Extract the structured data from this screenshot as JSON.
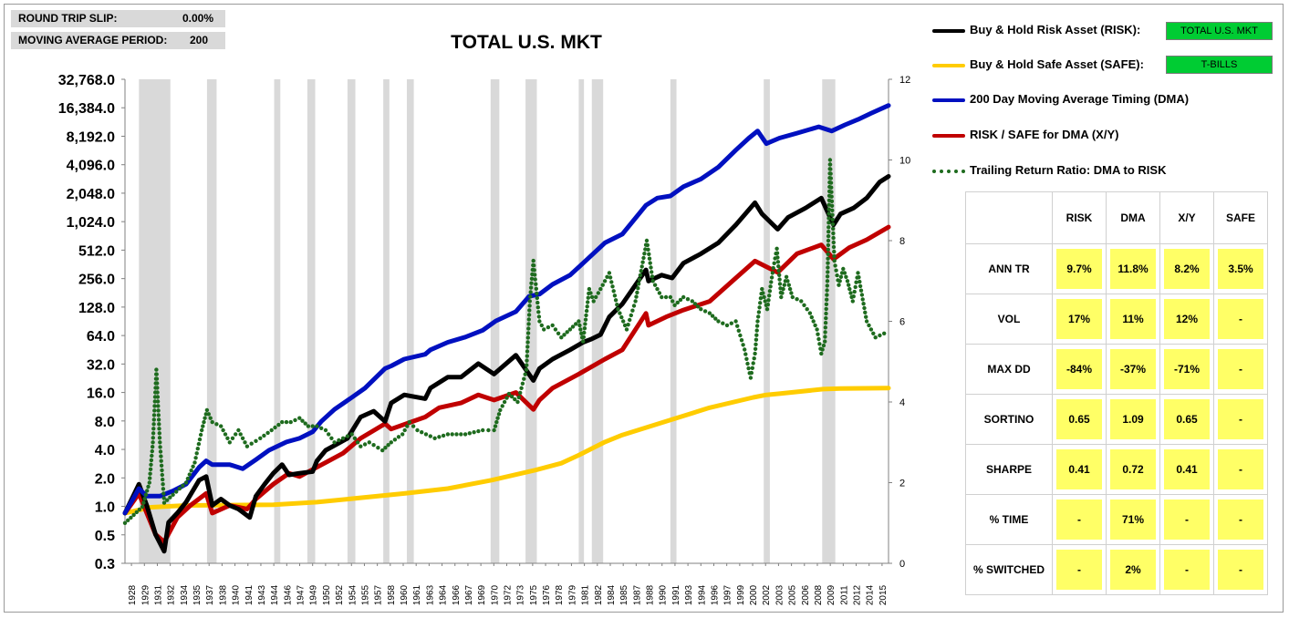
{
  "params": [
    {
      "label": "ROUND TRIP SLIP:",
      "value": "0.00%"
    },
    {
      "label": "MOVING AVERAGE PERIOD:",
      "value": "200"
    }
  ],
  "colors": {
    "risk": "#000000",
    "safe": "#ffcc00",
    "dma": "#0010c0",
    "xy": "#c00000",
    "ratio": "#1e6b1e",
    "recession": "#d9d9d9",
    "tag": "#00cc33",
    "cell": "#ffff66"
  },
  "legend": [
    {
      "label": "Buy & Hold Risk Asset (RISK):",
      "tag": "TOTAL U.S. MKT",
      "style": "line",
      "color_key": "risk"
    },
    {
      "label": "Buy & Hold Safe Asset (SAFE):",
      "tag": "T-BILLS",
      "style": "line",
      "color_key": "safe"
    },
    {
      "label": "200 Day Moving Average Timing (DMA)",
      "style": "line",
      "color_key": "dma"
    },
    {
      "label": "RISK / SAFE for DMA (X/Y)",
      "style": "line",
      "color_key": "xy"
    },
    {
      "label": "Trailing Return Ratio: DMA to RISK",
      "style": "dots",
      "color_key": "ratio"
    }
  ],
  "stats": {
    "columns": [
      "RISK",
      "DMA",
      "X/Y",
      "SAFE"
    ],
    "rows": [
      {
        "label": "ANN TR",
        "values": [
          "9.7%",
          "11.8%",
          "8.2%",
          "3.5%"
        ]
      },
      {
        "label": "VOL",
        "values": [
          "17%",
          "11%",
          "12%",
          "-"
        ]
      },
      {
        "label": "MAX DD",
        "values": [
          "-84%",
          "-37%",
          "-71%",
          "-"
        ]
      },
      {
        "label": "SORTINO",
        "values": [
          "0.65",
          "1.09",
          "0.65",
          "-"
        ]
      },
      {
        "label": "SHARPE",
        "values": [
          "0.41",
          "0.72",
          "0.41",
          "-"
        ]
      },
      {
        "label": "% TIME",
        "values": [
          "-",
          "71%",
          "-",
          "-"
        ]
      },
      {
        "label": "% SWITCHED",
        "values": [
          "-",
          "2%",
          "-",
          "-"
        ]
      }
    ]
  },
  "chart_data": {
    "type": "line",
    "title": "TOTAL U.S. MKT",
    "y_scale": "log2",
    "y_ticks": [
      "32,768.0",
      "16,384.0",
      "8,192.0",
      "4,096.0",
      "2,048.0",
      "1,024.0",
      "512.0",
      "256.0",
      "128.0",
      "64.0",
      "32.0",
      "16.0",
      "8.0",
      "4.0",
      "2.0",
      "1.0",
      "0.5",
      "0.3"
    ],
    "y2_ticks": [
      "12",
      "10",
      "8",
      "6",
      "4",
      "2",
      "0"
    ],
    "y2_range": [
      0,
      12
    ],
    "x_range": [
      1928,
      2015.5
    ],
    "x_ticks": [
      "1928",
      "1929",
      "1931",
      "1932",
      "1934",
      "1935",
      "1937",
      "1938",
      "1940",
      "1941",
      "1943",
      "1944",
      "1946",
      "1947",
      "1949",
      "1950",
      "1952",
      "1954",
      "1955",
      "1957",
      "1958",
      "1960",
      "1961",
      "1963",
      "1964",
      "1966",
      "1967",
      "1969",
      "1970",
      "1972",
      "1973",
      "1975",
      "1976",
      "1978",
      "1979",
      "1981",
      "1982",
      "1984",
      "1985",
      "1987",
      "1988",
      "1990",
      "1991",
      "1993",
      "1994",
      "1996",
      "1997",
      "1999",
      "2000",
      "2002",
      "2003",
      "2005",
      "2006",
      "2008",
      "2009",
      "2011",
      "2012",
      "2014",
      "2015"
    ],
    "recessions": [
      [
        1929.6,
        1933.2
      ],
      [
        1937.4,
        1938.5
      ],
      [
        1945.1,
        1945.8
      ],
      [
        1948.9,
        1949.8
      ],
      [
        1953.5,
        1954.4
      ],
      [
        1957.6,
        1958.3
      ],
      [
        1960.3,
        1961.1
      ],
      [
        1969.9,
        1970.9
      ],
      [
        1973.9,
        1975.2
      ],
      [
        1980.0,
        1980.6
      ],
      [
        1981.5,
        1982.8
      ],
      [
        1990.5,
        1991.2
      ],
      [
        2001.2,
        2001.9
      ],
      [
        2007.9,
        2009.4
      ]
    ],
    "series": [
      {
        "name": "Buy & Hold Risk Asset (RISK)",
        "axis": "left",
        "x": [
          1928,
          1929.6,
          1930.5,
          1931.5,
          1932.5,
          1933,
          1934,
          1935,
          1936.5,
          1937.3,
          1938,
          1939,
          1940,
          1941,
          1942.3,
          1943,
          1944,
          1945,
          1946,
          1946.8,
          1948,
          1949.5,
          1950,
          1951,
          1953.5,
          1955,
          1956.5,
          1957.8,
          1958.5,
          1960,
          1962.4,
          1963,
          1965,
          1966.5,
          1968.5,
          1970.3,
          1972.8,
          1974.8,
          1975.5,
          1977,
          1979,
          1980.5,
          1981.5,
          1982.5,
          1983.5,
          1985,
          1987.7,
          1988,
          1989.5,
          1990.7,
          1992,
          1994,
          1996,
          1998,
          2000.2,
          2001,
          2002.8,
          2004,
          2006,
          2007.8,
          2009.2,
          2010,
          2011.5,
          2013,
          2014.5,
          2015.5
        ],
        "y": [
          1.0,
          2.0,
          1.2,
          0.6,
          0.4,
          0.8,
          1.0,
          1.3,
          2.2,
          2.4,
          1.2,
          1.4,
          1.2,
          1.1,
          0.9,
          1.5,
          2.0,
          2.6,
          3.2,
          2.5,
          2.6,
          2.7,
          3.5,
          4.5,
          6.0,
          10.0,
          11.5,
          9.0,
          14.0,
          17.0,
          15.5,
          20.0,
          26.0,
          26.0,
          36.0,
          28.0,
          44.0,
          24.0,
          32.0,
          40.0,
          50.0,
          60.0,
          65.0,
          72.0,
          110.0,
          150.0,
          340.0,
          260.0,
          300.0,
          280.0,
          400.0,
          500.0,
          650.0,
          1000.0,
          1700.0,
          1300.0,
          900.0,
          1200.0,
          1500.0,
          1900.0,
          1000.0,
          1300.0,
          1500.0,
          1900.0,
          2800.0,
          3200.0
        ]
      },
      {
        "name": "Buy & Hold Safe Asset (SAFE)",
        "axis": "left",
        "x": [
          1928,
          1931,
          1935,
          1945,
          1950,
          1960,
          1965,
          1970,
          1975,
          1978,
          1980,
          1983,
          1985,
          1990,
          1995,
          2000,
          2001.5,
          2003,
          2008,
          2010,
          2015.5
        ],
        "y": [
          1.0,
          1.15,
          1.2,
          1.22,
          1.3,
          1.6,
          1.8,
          2.2,
          2.8,
          3.3,
          4.0,
          5.5,
          6.5,
          9.0,
          12.5,
          16.0,
          17.0,
          17.5,
          19.5,
          19.8,
          20.0
        ]
      },
      {
        "name": "200 Day Moving Average Timing (DMA)",
        "axis": "left",
        "x": [
          1928,
          1929.6,
          1930.5,
          1932,
          1933.5,
          1935,
          1936.5,
          1937.3,
          1938,
          1940,
          1941.5,
          1943,
          1944.5,
          1946.5,
          1948,
          1949.5,
          1950.5,
          1952,
          1954,
          1955.5,
          1957.8,
          1958.5,
          1960,
          1962.4,
          1963,
          1965,
          1967,
          1969,
          1970.5,
          1972.8,
          1974.3,
          1975.5,
          1977,
          1979,
          1980.5,
          1983,
          1985,
          1987.7,
          1989,
          1990.5,
          1992,
          1994,
          1996,
          1998,
          1999.5,
          2000.5,
          2001.5,
          2003,
          2005,
          2007.5,
          2009,
          2010.5,
          2012,
          2013.5,
          2015.5
        ],
        "y": [
          1.0,
          1.8,
          1.5,
          1.5,
          1.7,
          2.0,
          3.0,
          3.5,
          3.2,
          3.2,
          2.9,
          3.6,
          4.5,
          5.5,
          6.0,
          7.0,
          9.0,
          12.0,
          16.0,
          20.0,
          32.0,
          34.0,
          40.0,
          45.0,
          50.0,
          60.0,
          68.0,
          80.0,
          100.0,
          125.0,
          180.0,
          190.0,
          240.0,
          300.0,
          400.0,
          650.0,
          800.0,
          1600.0,
          1900.0,
          2000.0,
          2500.0,
          3000.0,
          4000.0,
          6000.0,
          8000.0,
          9500.0,
          7000.0,
          8000.0,
          9000.0,
          10500.0,
          9500.0,
          11000.0,
          12500.0,
          14500.0,
          17500.0
        ]
      },
      {
        "name": "RISK / SAFE for DMA (X/Y)",
        "axis": "left",
        "x": [
          1928,
          1929.6,
          1930.5,
          1931.5,
          1932.5,
          1934,
          1935.5,
          1937.3,
          1938,
          1940,
          1942,
          1943,
          1945,
          1946.8,
          1948,
          1950,
          1953,
          1955,
          1957.8,
          1958.5,
          1962.4,
          1964,
          1966.5,
          1968.5,
          1970.3,
          1972.8,
          1974.8,
          1975.5,
          1977,
          1980,
          1983,
          1985,
          1987.7,
          1988,
          1990,
          1992,
          1995,
          1998,
          2000.2,
          2002.8,
          2005,
          2007.8,
          2009.2,
          2011,
          2013,
          2015.5
        ],
        "y": [
          1.0,
          1.6,
          1.0,
          0.6,
          0.5,
          0.9,
          1.2,
          1.6,
          1.0,
          1.2,
          1.1,
          1.4,
          2.0,
          2.6,
          2.4,
          3.0,
          4.2,
          6.0,
          8.5,
          7.5,
          10.0,
          12.5,
          14.0,
          17.0,
          15.0,
          18.0,
          12.0,
          15.0,
          20.0,
          28.0,
          40.0,
          50.0,
          120.0,
          90.0,
          110.0,
          130.0,
          160.0,
          280.0,
          420.0,
          320.0,
          500.0,
          620.0,
          440.0,
          580.0,
          700.0,
          950.0
        ]
      },
      {
        "name": "Trailing Return Ratio: DMA to RISK",
        "axis": "right",
        "x": [
          1928,
          1929,
          1930,
          1930.8,
          1931.2,
          1931.6,
          1932,
          1932.5,
          1933.5,
          1935,
          1936,
          1936.8,
          1937.4,
          1938,
          1939,
          1940,
          1941,
          1942,
          1943.5,
          1944.8,
          1946,
          1947,
          1948,
          1949,
          1950,
          1951,
          1952,
          1953,
          1954,
          1955,
          1956,
          1957.5,
          1958.5,
          1959.8,
          1960.6,
          1961.5,
          1962.5,
          1963.5,
          1965,
          1967,
          1969,
          1970.3,
          1971,
          1972,
          1973,
          1974,
          1974.4,
          1974.8,
          1975.5,
          1976,
          1977,
          1978,
          1979,
          1980,
          1980.5,
          1981.2,
          1981.7,
          1982.5,
          1983.5,
          1984.5,
          1985.5,
          1986.5,
          1987.8,
          1988.5,
          1989.5,
          1990.5,
          1991,
          1992,
          1993,
          1994,
          1995,
          1996,
          1997,
          1998,
          1999,
          1999.7,
          2000.2,
          2000.5,
          2001,
          2001.6,
          2002.2,
          2002.7,
          2003.2,
          2003.8,
          2004.5,
          2005.5,
          2006.5,
          2007.3,
          2007.8,
          2008.2,
          2008.5,
          2008.8,
          2009.3,
          2009.8,
          2010.3,
          2010.8,
          2011.4,
          2012,
          2013,
          2014,
          2015,
          2015.5
        ],
        "y": [
          1.0,
          1.2,
          1.4,
          2.0,
          3.0,
          4.8,
          3.0,
          1.5,
          1.7,
          2.0,
          2.5,
          3.3,
          3.8,
          3.5,
          3.4,
          3.0,
          3.3,
          2.9,
          3.1,
          3.3,
          3.5,
          3.5,
          3.6,
          3.4,
          3.4,
          3.3,
          3.0,
          3.1,
          3.2,
          2.9,
          3.0,
          2.8,
          3.0,
          3.2,
          3.5,
          3.3,
          3.2,
          3.1,
          3.2,
          3.2,
          3.3,
          3.3,
          3.8,
          4.2,
          4.0,
          4.8,
          6.5,
          7.5,
          6.0,
          5.8,
          5.9,
          5.6,
          5.8,
          6.0,
          5.5,
          6.8,
          6.5,
          6.8,
          7.2,
          6.3,
          5.8,
          6.5,
          8.0,
          7.0,
          6.6,
          6.6,
          6.4,
          6.6,
          6.5,
          6.3,
          6.2,
          6.0,
          5.9,
          6.0,
          5.3,
          4.6,
          5.2,
          6.0,
          6.8,
          6.3,
          7.2,
          7.8,
          6.6,
          7.1,
          6.6,
          6.5,
          6.2,
          5.8,
          5.2,
          5.5,
          7.0,
          10.0,
          7.5,
          6.9,
          7.3,
          7.0,
          6.5,
          7.2,
          6.0,
          5.6,
          5.7,
          5.6
        ]
      }
    ]
  }
}
